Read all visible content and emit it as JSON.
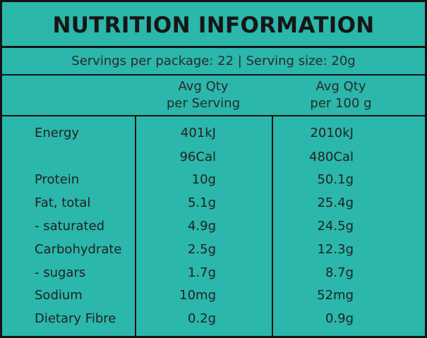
{
  "title": "NUTRITION INFORMATION",
  "serving_line": "Servings per package: 22 | Serving size: 20g",
  "headers": {
    "per_serving": [
      "Avg Qty",
      "per Serving"
    ],
    "per_100g": [
      "Avg Qty",
      "per 100 g"
    ]
  },
  "rows": [
    {
      "label": "Energy",
      "per_serving": "401kJ",
      "per_100g": "2010kJ"
    },
    {
      "label": "",
      "per_serving": "96Cal",
      "per_100g": "480Cal"
    },
    {
      "label": "Protein",
      "per_serving": "10g",
      "per_100g": "50.1g"
    },
    {
      "label": "Fat, total",
      "per_serving": "5.1g",
      "per_100g": "25.4g"
    },
    {
      "label": "- saturated",
      "per_serving": "4.9g",
      "per_100g": "24.5g"
    },
    {
      "label": "Carbohydrate",
      "per_serving": "2.5g",
      "per_100g": "12.3g"
    },
    {
      "label": "- sugars",
      "per_serving": "1.7g",
      "per_100g": "8.7g"
    },
    {
      "label": "Sodium",
      "per_serving": "10mg",
      "per_100g": "52mg"
    },
    {
      "label": "Dietary Fibre",
      "per_serving": "0.2g",
      "per_100g": "0.9g"
    }
  ],
  "colors": {
    "background": "#2bb7ab",
    "ink": "#141414"
  }
}
